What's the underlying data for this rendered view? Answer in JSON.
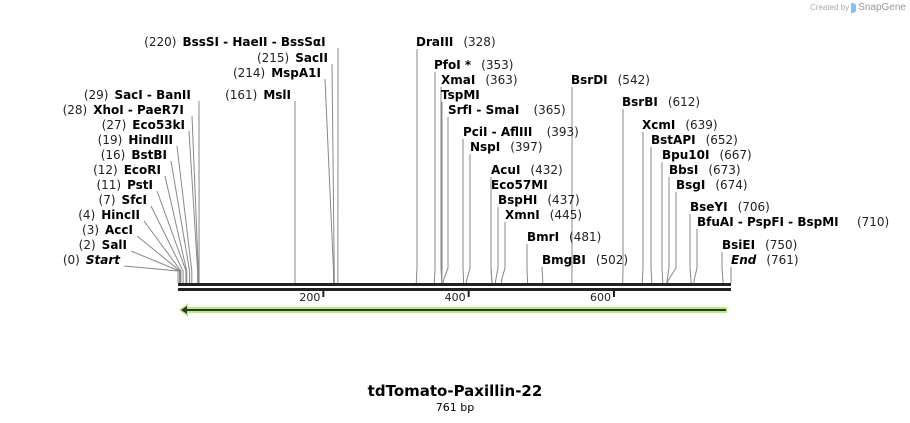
{
  "credit": {
    "prefix": "Created by",
    "brand": "SnapGene"
  },
  "sequence": {
    "name": "tdTomato-Paxillin-22",
    "length_label": "761 bp",
    "length": 761
  },
  "colors": {
    "backbone": "#222222",
    "feature_fill": "#a8e06a",
    "feature_line": "#333333",
    "leader": "#888888"
  },
  "ruler": {
    "ticks": [
      {
        "pos": 200,
        "label": "200"
      },
      {
        "pos": 400,
        "label": "400"
      },
      {
        "pos": 600,
        "label": "600"
      }
    ]
  },
  "feature": {
    "type": "arrow",
    "direction": "reverse",
    "start": 1,
    "end": 753
  },
  "sites": [
    {
      "label_pos": "(220)",
      "name": "BssSI  - HaeII  - BssSαI",
      "site": 220
    },
    {
      "label_pos": "(215)",
      "name": "SacII",
      "site": 215
    },
    {
      "label_pos": "(214)",
      "name": "MspA1I",
      "site": 214
    },
    {
      "label_pos": "(161)",
      "name": "MslI",
      "site": 161
    },
    {
      "label_pos": "(29)",
      "name": "SacI  - BanII",
      "site": 29
    },
    {
      "label_pos": "(28)",
      "name": "XhoI  - PaeR7I",
      "site": 28
    },
    {
      "label_pos": "(27)",
      "name": "Eco53kI",
      "site": 27
    },
    {
      "label_pos": "(19)",
      "name": "HindIII",
      "site": 19
    },
    {
      "label_pos": "(16)",
      "name": "BstBI",
      "site": 16
    },
    {
      "label_pos": "(12)",
      "name": "EcoRI",
      "site": 12
    },
    {
      "label_pos": "(11)",
      "name": "PstI",
      "site": 11
    },
    {
      "label_pos": "(7)",
      "name": "SfcI",
      "site": 7
    },
    {
      "label_pos": "(4)",
      "name": "HincII",
      "site": 4
    },
    {
      "label_pos": "(3)",
      "name": "AccI",
      "site": 3
    },
    {
      "label_pos": "(2)",
      "name": "SalI",
      "site": 2
    },
    {
      "label_pos": "(0)",
      "name": "Start",
      "site": 0
    },
    {
      "name": "DraIII",
      "label_pos": "(328)",
      "site": 328
    },
    {
      "name": "PfoI *",
      "label_pos": "(353)",
      "site": 353
    },
    {
      "name": "XmaI",
      "label_pos": "(363)",
      "site": 363
    },
    {
      "name": "TspMI",
      "label_pos": "",
      "site": 363
    },
    {
      "name": "SrfI  - SmaI",
      "label_pos": "(365)",
      "site": 365
    },
    {
      "name": "PciI  - AflIII",
      "label_pos": "(393)",
      "site": 393
    },
    {
      "name": "NspI",
      "label_pos": "(397)",
      "site": 397
    },
    {
      "name": "AcuI",
      "label_pos": "(432)",
      "site": 432
    },
    {
      "name": "Eco57MI",
      "label_pos": "",
      "site": 432
    },
    {
      "name": "BspHI",
      "label_pos": "(437)",
      "site": 437
    },
    {
      "name": "XmnI",
      "label_pos": "(445)",
      "site": 445
    },
    {
      "name": "BmrI",
      "label_pos": "(481)",
      "site": 481
    },
    {
      "name": "BmgBI",
      "label_pos": "(502)",
      "site": 502
    },
    {
      "name": "BsrDI",
      "label_pos": "(542)",
      "site": 542
    },
    {
      "name": "BsrBI",
      "label_pos": "(612)",
      "site": 612
    },
    {
      "name": "XcmI",
      "label_pos": "(639)",
      "site": 639
    },
    {
      "name": "BstAPI",
      "label_pos": "(652)",
      "site": 652
    },
    {
      "name": "Bpu10I",
      "label_pos": "(667)",
      "site": 667
    },
    {
      "name": "BbsI",
      "label_pos": "(673)",
      "site": 673
    },
    {
      "name": "BsgI",
      "label_pos": "(674)",
      "site": 674
    },
    {
      "name": "BseYI",
      "label_pos": "(706)",
      "site": 706
    },
    {
      "name": "BfuAI  - PspFI  - BspMI",
      "label_pos": "(710)",
      "site": 710
    },
    {
      "name": "BsiEI",
      "label_pos": "(750)",
      "site": 750
    },
    {
      "name": "End",
      "label_pos": "(761)",
      "site": 761
    }
  ]
}
